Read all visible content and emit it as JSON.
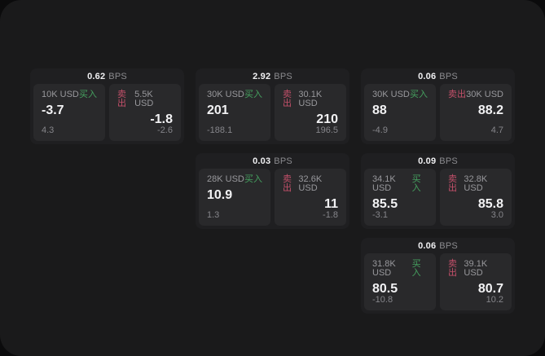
{
  "labels": {
    "buy": "买入",
    "sell": "卖出",
    "bps_unit": "BPS"
  },
  "colors": {
    "buy_green": "#45a05f",
    "sell_red": "#c4506a",
    "window_bg": "#1a1a1b",
    "card_bg": "#1f1f21",
    "panel_bg": "#29292b"
  },
  "cards": [
    {
      "bps": "0.62",
      "buy": {
        "amount": "10K USD",
        "price": "-3.7",
        "change": "4.3"
      },
      "sell": {
        "amount": "5.5K USD",
        "price": "-1.8",
        "change": "-2.6"
      }
    },
    {
      "bps": "2.92",
      "buy": {
        "amount": "30K USD",
        "price": "201",
        "change": "-188.1"
      },
      "sell": {
        "amount": "30.1K USD",
        "price": "210",
        "change": "196.5"
      }
    },
    {
      "bps": "0.06",
      "buy": {
        "amount": "30K USD",
        "price": "88",
        "change": "-4.9"
      },
      "sell": {
        "amount": "30K USD",
        "price": "88.2",
        "change": "4.7"
      }
    },
    {
      "bps": "0.03",
      "buy": {
        "amount": "28K USD",
        "price": "10.9",
        "change": "1.3"
      },
      "sell": {
        "amount": "32.6K USD",
        "price": "11",
        "change": "-1.8"
      }
    },
    {
      "bps": "0.09",
      "buy": {
        "amount": "34.1K USD",
        "price": "85.5",
        "change": "-3.1"
      },
      "sell": {
        "amount": "32.8K USD",
        "price": "85.8",
        "change": "3.0"
      }
    },
    {
      "bps": "0.06",
      "buy": {
        "amount": "31.8K USD",
        "price": "80.5",
        "change": "-10.8"
      },
      "sell": {
        "amount": "39.1K USD",
        "price": "80.7",
        "change": "10.2"
      }
    }
  ]
}
